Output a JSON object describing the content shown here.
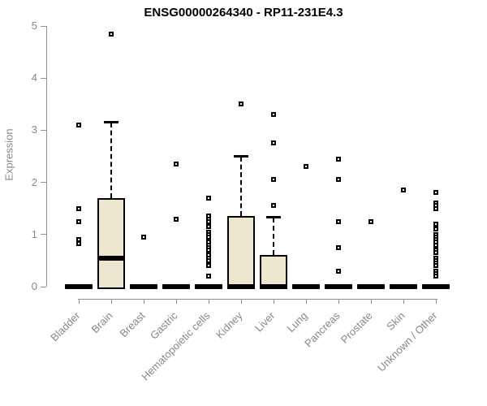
{
  "chart_data": {
    "type": "boxplot",
    "title": "ENSG00000264340 - RP11-231E4.3",
    "xlabel": "",
    "ylabel": "Expression",
    "ylim": [
      0,
      5
    ],
    "yticks": [
      0,
      1,
      2,
      3,
      4,
      5
    ],
    "grid": false,
    "legend": "none",
    "box_fill_color": "#EDE6CE",
    "box_border_color": "#000000",
    "axis_color": "#909090",
    "tick_label_color": "#878787",
    "categories": [
      "Bladder",
      "Brain",
      "Breast",
      "Gastric",
      "Hematopoietic cells",
      "Kidney",
      "Liver",
      "Lung",
      "Pancreas",
      "Prostate",
      "Skin",
      "Unknown / Other"
    ],
    "boxes": [
      {
        "category": "Bladder",
        "q1": 0,
        "median": 0,
        "q3": 0,
        "whisker_low": 0,
        "whisker_high": 0,
        "outliers": [
          3.1,
          1.5,
          1.25,
          0.9,
          0.82
        ]
      },
      {
        "category": "Brain",
        "q1": 0,
        "median": 0.55,
        "q3": 1.7,
        "whisker_low": 0,
        "whisker_high": 3.15,
        "outliers": [
          4.85
        ]
      },
      {
        "category": "Breast",
        "q1": 0,
        "median": 0,
        "q3": 0,
        "whisker_low": 0,
        "whisker_high": 0,
        "outliers": [
          0.95
        ]
      },
      {
        "category": "Gastric",
        "q1": 0,
        "median": 0,
        "q3": 0,
        "whisker_low": 0,
        "whisker_high": 0,
        "outliers": [
          2.35,
          1.3
        ]
      },
      {
        "category": "Hematopoietic cells",
        "q1": 0,
        "median": 0,
        "q3": 0,
        "whisker_low": 0,
        "whisker_high": 0,
        "outliers": [
          1.7,
          1.35,
          1.3,
          1.25,
          1.15,
          1.05,
          1.0,
          0.95,
          0.85,
          0.8,
          0.75,
          0.7,
          0.6,
          0.55,
          0.5,
          0.4,
          0.2
        ]
      },
      {
        "category": "Kidney",
        "q1": 0,
        "median": 0,
        "q3": 1.35,
        "whisker_low": 0,
        "whisker_high": 2.5,
        "outliers": [
          3.5
        ]
      },
      {
        "category": "Liver",
        "q1": 0,
        "median": 0,
        "q3": 0.6,
        "whisker_low": 0,
        "whisker_high": 1.33,
        "outliers": [
          3.3,
          2.75,
          2.05,
          1.55
        ]
      },
      {
        "category": "Lung",
        "q1": 0,
        "median": 0,
        "q3": 0,
        "whisker_low": 0,
        "whisker_high": 0,
        "outliers": [
          2.3
        ]
      },
      {
        "category": "Pancreas",
        "q1": 0,
        "median": 0,
        "q3": 0,
        "whisker_low": 0,
        "whisker_high": 0,
        "outliers": [
          2.45,
          2.05,
          1.25,
          0.75,
          0.3
        ]
      },
      {
        "category": "Prostate",
        "q1": 0,
        "median": 0,
        "q3": 0,
        "whisker_low": 0,
        "whisker_high": 0,
        "outliers": [
          1.25
        ]
      },
      {
        "category": "Skin",
        "q1": 0,
        "median": 0,
        "q3": 0,
        "whisker_low": 0,
        "whisker_high": 0,
        "outliers": [
          1.85
        ]
      },
      {
        "category": "Unknown / Other",
        "q1": 0,
        "median": 0,
        "q3": 0,
        "whisker_low": 0,
        "whisker_high": 0,
        "outliers": [
          1.8,
          1.6,
          1.55,
          1.5,
          1.2,
          1.1,
          1.0,
          0.95,
          0.9,
          0.85,
          0.8,
          0.7,
          0.65,
          0.55,
          0.5,
          0.45,
          0.4,
          0.3,
          0.25,
          0.2
        ]
      }
    ]
  }
}
